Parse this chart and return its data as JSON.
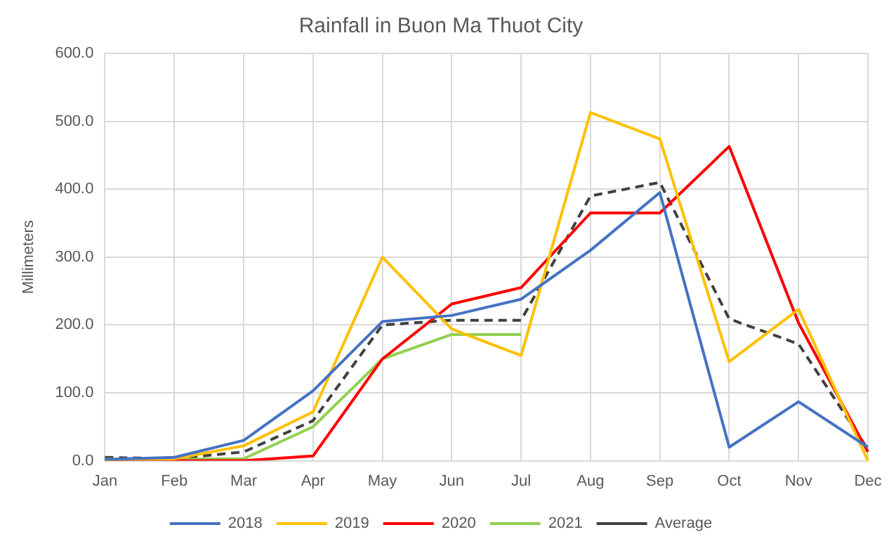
{
  "chart_data": {
    "type": "line",
    "title": "Rainfall in Buon Ma Thuot City",
    "ylabel": "Millimeters",
    "categories": [
      "Jan",
      "Feb",
      "Mar",
      "Apr",
      "May",
      "Jun",
      "Jul",
      "Aug",
      "Sep",
      "Oct",
      "Nov",
      "Dec"
    ],
    "series": [
      {
        "name": "2018",
        "color": "#4472c4",
        "values": [
          2,
          5,
          30,
          103,
          205,
          214,
          238,
          310,
          395,
          20,
          87,
          20
        ]
      },
      {
        "name": "2019",
        "color": "#ffc000",
        "values": [
          2,
          3,
          22,
          72,
          300,
          194,
          155,
          513,
          474,
          146,
          223,
          0
        ]
      },
      {
        "name": "2020",
        "color": "#ff0000",
        "values": [
          0,
          0,
          0,
          7,
          150,
          231,
          255,
          365,
          365,
          463,
          203,
          13
        ]
      },
      {
        "name": "2021",
        "color": "#92d050",
        "values": [
          2,
          2,
          3,
          50,
          150,
          186,
          186,
          null,
          null,
          null,
          null,
          null
        ]
      },
      {
        "name": "Average",
        "color": "#404040",
        "line_style": "dashed",
        "values": [
          5,
          3,
          13,
          59,
          200,
          207,
          207,
          390,
          410,
          209,
          172,
          17
        ]
      }
    ],
    "ylim": [
      0,
      600
    ],
    "yticks": [
      {
        "value": 0,
        "label": "0.0"
      },
      {
        "value": 100,
        "label": "100.0"
      },
      {
        "value": 200,
        "label": "200.0"
      },
      {
        "value": 300,
        "label": "300.0"
      },
      {
        "value": 400,
        "label": "400.0"
      },
      {
        "value": 500,
        "label": "500.0"
      },
      {
        "value": 600,
        "label": "600.0"
      }
    ],
    "grid": true,
    "legend": "bottom",
    "marker": "none",
    "line_style": "solid"
  }
}
